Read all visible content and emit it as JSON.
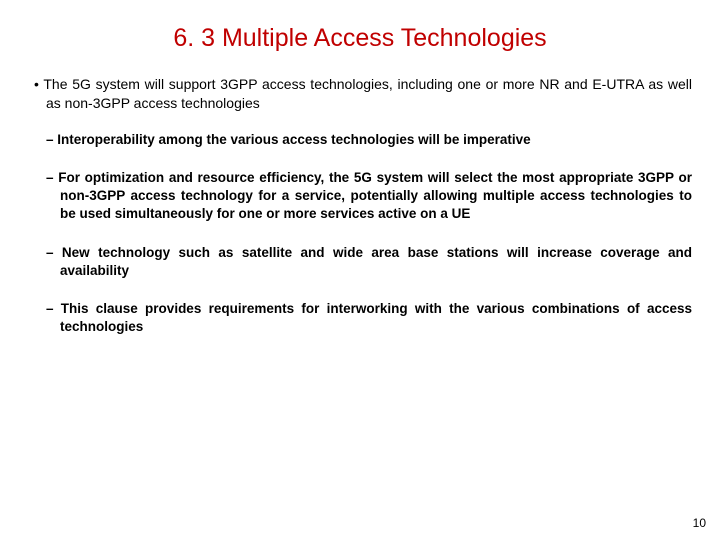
{
  "title": "6. 3 Multiple Access Technologies",
  "main_bullet": "The 5G system will support 3GPP access technologies, including one or more NR and E-UTRA as well as non-3GPP access technologies",
  "dash_items": [
    "Interoperability among the various access technologies will be imperative",
    "For optimization and resource efficiency, the 5G system will select the most appropriate 3GPP or non-3GPP access technology for a service, potentially allowing multiple access technologies to be used simultaneously for one or more services active on a UE",
    "New technology such as satellite and wide area base stations will increase coverage and availability",
    "This clause provides requirements for interworking with the various combinations of access technologies"
  ],
  "page_number": "10",
  "colors": {
    "title_color": "#c00000",
    "text_color": "#000000",
    "background": "#ffffff"
  },
  "typography": {
    "title_fontsize": 25,
    "body_fontsize": 14,
    "dash_fontsize": 13.5,
    "font_family": "Arial"
  }
}
